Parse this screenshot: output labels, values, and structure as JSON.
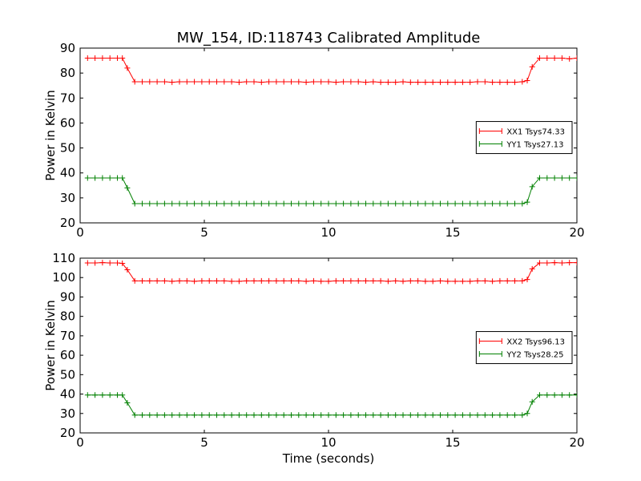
{
  "figure": {
    "title": "MW_154, ID:118743 Calibrated Amplitude"
  },
  "colors": {
    "xx": "#ff0000",
    "yy": "#008000",
    "axes": "#000000",
    "background": "#ffffff"
  },
  "chart_data": [
    {
      "type": "line",
      "title": "MW_154, ID:118743 Calibrated Amplitude",
      "xlabel": "",
      "ylabel": "Power in Kelvin",
      "xlim": [
        0,
        20
      ],
      "ylim": [
        20,
        90
      ],
      "x_ticks": [
        0,
        5,
        10,
        15,
        20
      ],
      "y_ticks": [
        20,
        30,
        40,
        50,
        60,
        70,
        80,
        90
      ],
      "grid": false,
      "legend_position": "center-right",
      "marker": "+",
      "series": [
        {
          "name": "XX1 Tsys74.33",
          "color": "#ff0000",
          "x": [
            0.3,
            0.6,
            0.9,
            1.2,
            1.5,
            1.7,
            1.9,
            2.2,
            2.5,
            2.8,
            3.1,
            3.4,
            3.7,
            4.0,
            4.3,
            4.6,
            4.9,
            5.2,
            5.5,
            5.8,
            6.1,
            6.4,
            6.7,
            7.0,
            7.3,
            7.6,
            7.9,
            8.2,
            8.5,
            8.8,
            9.1,
            9.4,
            9.7,
            10.0,
            10.3,
            10.6,
            10.9,
            11.2,
            11.5,
            11.8,
            12.1,
            12.4,
            12.7,
            13.0,
            13.3,
            13.6,
            13.9,
            14.2,
            14.5,
            14.8,
            15.1,
            15.4,
            15.7,
            16.0,
            16.3,
            16.6,
            16.9,
            17.2,
            17.5,
            17.8,
            18.0,
            18.2,
            18.5,
            18.8,
            19.1,
            19.4,
            19.7,
            20.0
          ],
          "values": [
            86,
            86,
            86,
            86,
            86,
            86,
            82,
            76.5,
            76.5,
            76.5,
            76.5,
            76.5,
            76.3,
            76.5,
            76.5,
            76.5,
            76.5,
            76.5,
            76.5,
            76.5,
            76.5,
            76.3,
            76.5,
            76.5,
            76.3,
            76.5,
            76.5,
            76.5,
            76.5,
            76.5,
            76.3,
            76.5,
            76.5,
            76.5,
            76.3,
            76.5,
            76.5,
            76.5,
            76.3,
            76.5,
            76.3,
            76.3,
            76.3,
            76.5,
            76.3,
            76.3,
            76.3,
            76.3,
            76.3,
            76.3,
            76.3,
            76.3,
            76.3,
            76.5,
            76.5,
            76.3,
            76.3,
            76.3,
            76.3,
            76.5,
            77,
            82.5,
            86,
            86,
            86,
            86,
            85.7,
            86
          ]
        },
        {
          "name": "YY1 Tsys27.13",
          "color": "#008000",
          "x": [
            0.3,
            0.6,
            0.9,
            1.2,
            1.5,
            1.7,
            1.9,
            2.2,
            2.5,
            2.8,
            3.1,
            3.4,
            3.7,
            4.0,
            4.3,
            4.6,
            4.9,
            5.2,
            5.5,
            5.8,
            6.1,
            6.4,
            6.7,
            7.0,
            7.3,
            7.6,
            7.9,
            8.2,
            8.5,
            8.8,
            9.1,
            9.4,
            9.7,
            10.0,
            10.3,
            10.6,
            10.9,
            11.2,
            11.5,
            11.8,
            12.1,
            12.4,
            12.7,
            13.0,
            13.3,
            13.6,
            13.9,
            14.2,
            14.5,
            14.8,
            15.1,
            15.4,
            15.7,
            16.0,
            16.3,
            16.6,
            16.9,
            17.2,
            17.5,
            17.8,
            18.0,
            18.2,
            18.5,
            18.8,
            19.1,
            19.4,
            19.7,
            20.0
          ],
          "values": [
            38,
            38,
            38,
            38,
            38,
            38,
            34,
            27.7,
            27.7,
            27.7,
            27.7,
            27.7,
            27.7,
            27.7,
            27.7,
            27.7,
            27.7,
            27.7,
            27.7,
            27.7,
            27.7,
            27.7,
            27.7,
            27.7,
            27.7,
            27.7,
            27.7,
            27.7,
            27.7,
            27.7,
            27.7,
            27.7,
            27.7,
            27.7,
            27.7,
            27.7,
            27.7,
            27.7,
            27.7,
            27.7,
            27.7,
            27.7,
            27.7,
            27.7,
            27.7,
            27.7,
            27.7,
            27.7,
            27.7,
            27.7,
            27.7,
            27.7,
            27.7,
            27.7,
            27.7,
            27.7,
            27.7,
            27.7,
            27.7,
            27.7,
            28.3,
            34.5,
            38,
            38,
            38,
            38,
            38,
            38
          ]
        }
      ]
    },
    {
      "type": "line",
      "title": "",
      "xlabel": "Time (seconds)",
      "ylabel": "Power in Kelvin",
      "xlim": [
        0,
        20
      ],
      "ylim": [
        20,
        110
      ],
      "x_ticks": [
        0,
        5,
        10,
        15,
        20
      ],
      "y_ticks": [
        20,
        30,
        40,
        50,
        60,
        70,
        80,
        90,
        100,
        110
      ],
      "grid": false,
      "legend_position": "center-right",
      "marker": "+",
      "series": [
        {
          "name": "XX2 Tsys96.13",
          "color": "#ff0000",
          "x": [
            0.3,
            0.6,
            0.9,
            1.2,
            1.5,
            1.7,
            1.9,
            2.2,
            2.5,
            2.8,
            3.1,
            3.4,
            3.7,
            4.0,
            4.3,
            4.6,
            4.9,
            5.2,
            5.5,
            5.8,
            6.1,
            6.4,
            6.7,
            7.0,
            7.3,
            7.6,
            7.9,
            8.2,
            8.5,
            8.8,
            9.1,
            9.4,
            9.7,
            10.0,
            10.3,
            10.6,
            10.9,
            11.2,
            11.5,
            11.8,
            12.1,
            12.4,
            12.7,
            13.0,
            13.3,
            13.6,
            13.9,
            14.2,
            14.5,
            14.8,
            15.1,
            15.4,
            15.7,
            16.0,
            16.3,
            16.6,
            16.9,
            17.2,
            17.5,
            17.8,
            18.0,
            18.2,
            18.5,
            18.8,
            19.1,
            19.4,
            19.7,
            20.0
          ],
          "values": [
            107.5,
            107.5,
            107.7,
            107.5,
            107.5,
            107.3,
            104,
            98.3,
            98.3,
            98.3,
            98.3,
            98.3,
            98.1,
            98.3,
            98.3,
            98.1,
            98.3,
            98.3,
            98.3,
            98.3,
            98.1,
            98.1,
            98.3,
            98.3,
            98.3,
            98.3,
            98.3,
            98.3,
            98.3,
            98.3,
            98.1,
            98.3,
            98.1,
            98.1,
            98.3,
            98.3,
            98.3,
            98.3,
            98.3,
            98.3,
            98.3,
            98.1,
            98.3,
            98.1,
            98.3,
            98.3,
            98.1,
            98.1,
            98.3,
            98.1,
            98.1,
            98.1,
            98.1,
            98.3,
            98.3,
            98.1,
            98.3,
            98.3,
            98.3,
            98.3,
            99,
            104.5,
            107.5,
            107.5,
            107.7,
            107.5,
            107.7,
            107.7
          ]
        },
        {
          "name": "YY2 Tsys28.25",
          "color": "#008000",
          "x": [
            0.3,
            0.6,
            0.9,
            1.2,
            1.5,
            1.7,
            1.9,
            2.2,
            2.5,
            2.8,
            3.1,
            3.4,
            3.7,
            4.0,
            4.3,
            4.6,
            4.9,
            5.2,
            5.5,
            5.8,
            6.1,
            6.4,
            6.7,
            7.0,
            7.3,
            7.6,
            7.9,
            8.2,
            8.5,
            8.8,
            9.1,
            9.4,
            9.7,
            10.0,
            10.3,
            10.6,
            10.9,
            11.2,
            11.5,
            11.8,
            12.1,
            12.4,
            12.7,
            13.0,
            13.3,
            13.6,
            13.9,
            14.2,
            14.5,
            14.8,
            15.1,
            15.4,
            15.7,
            16.0,
            16.3,
            16.6,
            16.9,
            17.2,
            17.5,
            17.8,
            18.0,
            18.2,
            18.5,
            18.8,
            19.1,
            19.4,
            19.7,
            20.0
          ],
          "values": [
            39.5,
            39.5,
            39.5,
            39.5,
            39.5,
            39.5,
            35.5,
            29.2,
            29.2,
            29.2,
            29.2,
            29.2,
            29.2,
            29.2,
            29.2,
            29.2,
            29.2,
            29.2,
            29.2,
            29.2,
            29.2,
            29.2,
            29.2,
            29.2,
            29.2,
            29.2,
            29.2,
            29.2,
            29.2,
            29.2,
            29.2,
            29.2,
            29.2,
            29.2,
            29.2,
            29.2,
            29.2,
            29.2,
            29.2,
            29.2,
            29.2,
            29.2,
            29.2,
            29.2,
            29.2,
            29.2,
            29.2,
            29.2,
            29.2,
            29.2,
            29.2,
            29.2,
            29.2,
            29.2,
            29.2,
            29.2,
            29.2,
            29.2,
            29.2,
            29.2,
            30,
            36,
            39.5,
            39.5,
            39.5,
            39.5,
            39.5,
            39.5
          ]
        }
      ]
    }
  ]
}
